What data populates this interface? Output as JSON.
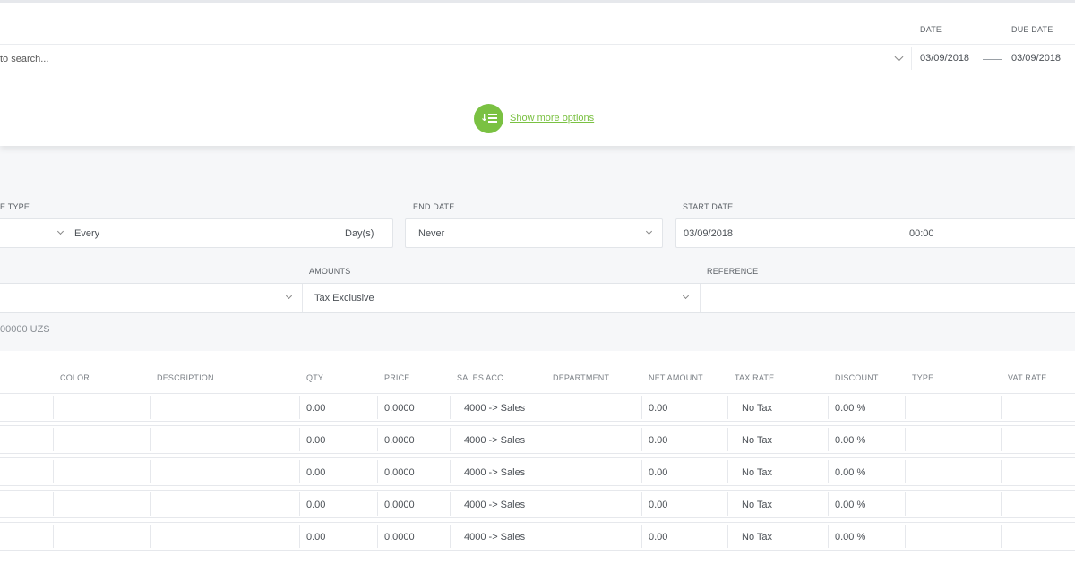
{
  "header": {
    "date_label": "DATE",
    "due_date_label": "DUE DATE",
    "search_placeholder": "to search...",
    "date_value": "03/09/2018",
    "due_date_value": "03/09/2018",
    "show_more_label": "Show more options"
  },
  "recurring": {
    "type_label": "E TYPE",
    "every_text": "Every",
    "days_unit": "Day(s)",
    "end_date_label": "END DATE",
    "end_date_value": "Never",
    "start_date_label": "START DATE",
    "start_date_value": "03/09/2018",
    "start_time_value": "00:00"
  },
  "details": {
    "amounts_label": "AMOUNTS",
    "amounts_value": "Tax Exclusive",
    "reference_label": "REFERENCE",
    "reference_value": "",
    "balance_text": "00000 UZS"
  },
  "table": {
    "headers": [
      "COLOR",
      "DESCRIPTION",
      "QTY",
      "PRICE",
      "SALES ACC.",
      "DEPARTMENT",
      "NET AMOUNT",
      "TAX RATE",
      "DISCOUNT",
      "TYPE",
      "VAT RATE"
    ],
    "rows": [
      {
        "qty": "0.00",
        "price": "0.0000",
        "sales_acc": "4000 -> Sales",
        "net_amount": "0.00",
        "tax_rate": "No Tax",
        "discount": "0.00 %"
      },
      {
        "qty": "0.00",
        "price": "0.0000",
        "sales_acc": "4000 -> Sales",
        "net_amount": "0.00",
        "tax_rate": "No Tax",
        "discount": "0.00 %"
      },
      {
        "qty": "0.00",
        "price": "0.0000",
        "sales_acc": "4000 -> Sales",
        "net_amount": "0.00",
        "tax_rate": "No Tax",
        "discount": "0.00 %"
      },
      {
        "qty": "0.00",
        "price": "0.0000",
        "sales_acc": "4000 -> Sales",
        "net_amount": "0.00",
        "tax_rate": "No Tax",
        "discount": "0.00 %"
      },
      {
        "qty": "0.00",
        "price": "0.0000",
        "sales_acc": "4000 -> Sales",
        "net_amount": "0.00",
        "tax_rate": "No Tax",
        "discount": "0.00 %"
      }
    ]
  },
  "colors": {
    "accent_green": "#7ac142",
    "background": "#f6f7f9",
    "border": "#e6e8ec"
  }
}
